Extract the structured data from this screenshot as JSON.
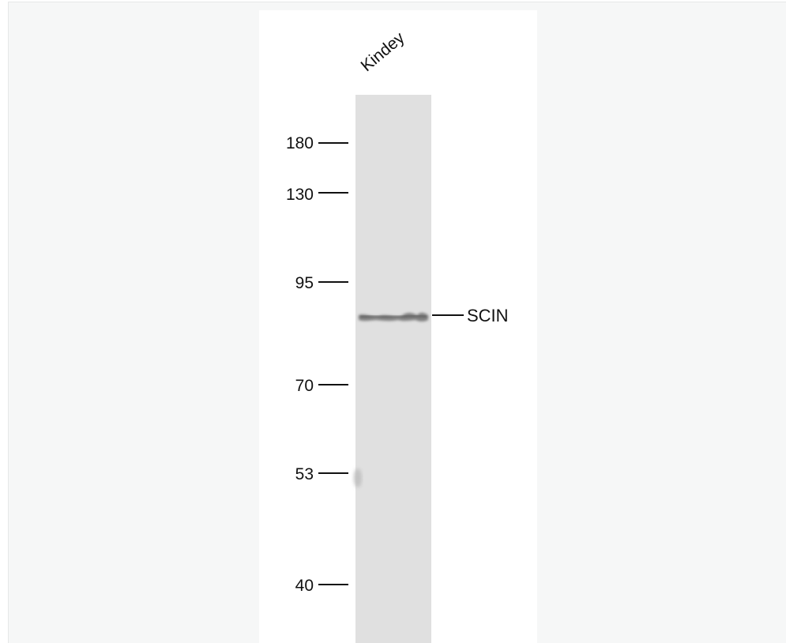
{
  "lane_label": "Kindey",
  "markers": {
    "m180": "180",
    "m130": "130",
    "m95": "95",
    "m70": "70",
    "m53": "53",
    "m40": "40"
  },
  "target": {
    "label": "SCIN"
  },
  "colors": {
    "lane": "#e0e0e0",
    "band": "#8a8a8a",
    "background": "#f6f7f7"
  }
}
